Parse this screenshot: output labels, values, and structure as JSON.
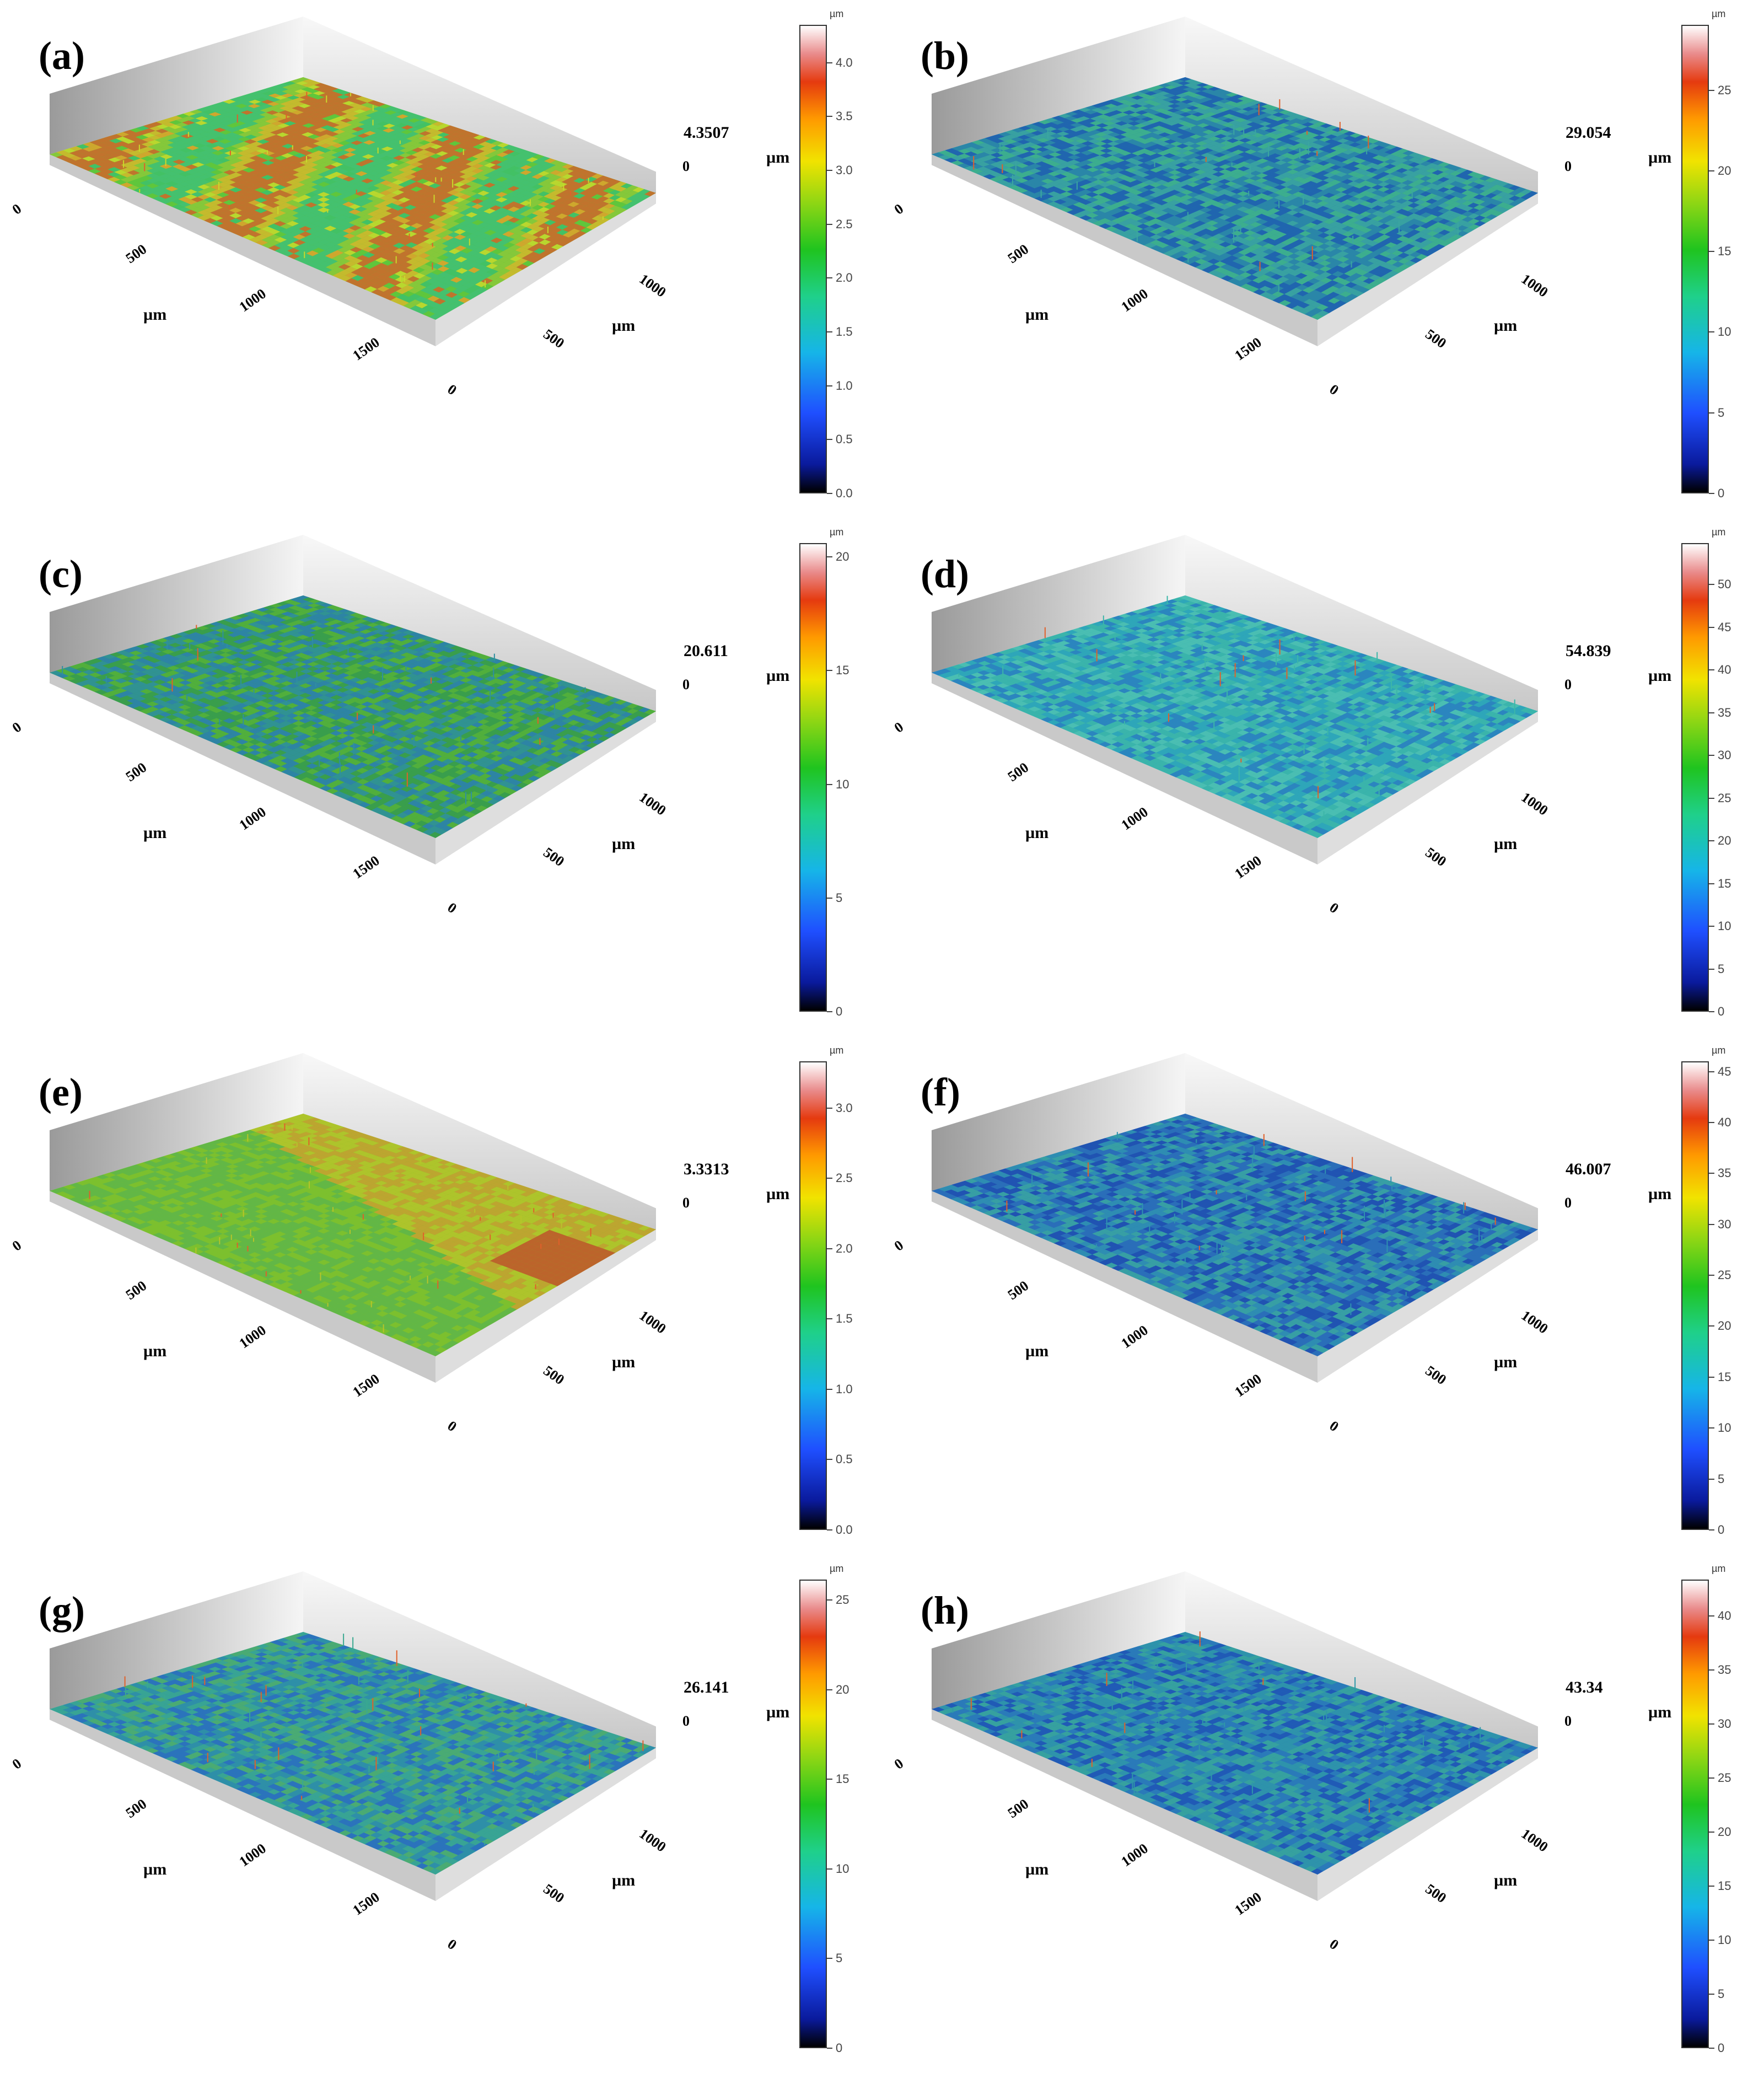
{
  "figure": {
    "panels": [
      {
        "label": "(a)",
        "max_value": "4.3507",
        "zero_label": "0",
        "unit": "µm",
        "x_ticks": [
          "0",
          "500",
          "1000",
          "1500"
        ],
        "x_unit": "µm",
        "y_ticks": [
          "0",
          "500",
          "1000"
        ],
        "y_unit": "µm",
        "colorbar": {
          "unit": "µm",
          "ticks": [
            "0.0",
            "0.5",
            "1.0",
            "1.5",
            "2.0",
            "2.5",
            "3.0",
            "3.5",
            "4.0"
          ],
          "max": 4.3507
        },
        "surface_colors": [
          "#5fc53c",
          "#c9d92b",
          "#e3a12a",
          "#d0652a",
          "#3dbf6c"
        ]
      },
      {
        "label": "(b)",
        "max_value": "29.054",
        "zero_label": "0",
        "unit": "µm",
        "x_ticks": [
          "0",
          "500",
          "1000",
          "1500"
        ],
        "x_unit": "µm",
        "y_ticks": [
          "0",
          "500",
          "1000"
        ],
        "y_unit": "µm",
        "colorbar": {
          "unit": "µm",
          "ticks": [
            "0",
            "5",
            "10",
            "15",
            "20",
            "25"
          ],
          "max": 29.054
        },
        "surface_colors": [
          "#2a86a8",
          "#3ba6a0",
          "#1f5fb0",
          "#40b58a"
        ]
      },
      {
        "label": "(c)",
        "max_value": "20.611",
        "zero_label": "0",
        "unit": "µm",
        "x_ticks": [
          "0",
          "500",
          "1000",
          "1500"
        ],
        "x_unit": "µm",
        "y_ticks": [
          "0",
          "500",
          "1000"
        ],
        "y_unit": "µm",
        "colorbar": {
          "unit": "µm",
          "ticks": [
            "0",
            "5",
            "10",
            "15",
            "20"
          ],
          "max": 20.611
        },
        "surface_colors": [
          "#3a9e4c",
          "#2f8fa0",
          "#56b13a",
          "#2b7fb5"
        ]
      },
      {
        "label": "(d)",
        "max_value": "54.839",
        "zero_label": "0",
        "unit": "µm",
        "x_ticks": [
          "0",
          "500",
          "1000",
          "1500"
        ],
        "x_unit": "µm",
        "y_ticks": [
          "0",
          "500",
          "1000"
        ],
        "y_unit": "µm",
        "colorbar": {
          "unit": "µm",
          "ticks": [
            "0",
            "5",
            "10",
            "15",
            "20",
            "25",
            "30",
            "35",
            "40",
            "45",
            "50"
          ],
          "max": 54.839
        },
        "surface_colors": [
          "#2ea6b8",
          "#3cb6a8",
          "#2a7fc0",
          "#4fc2b0"
        ]
      },
      {
        "label": "(e)",
        "max_value": "3.3313",
        "zero_label": "0",
        "unit": "µm",
        "x_ticks": [
          "0",
          "500",
          "1000",
          "1500"
        ],
        "x_unit": "µm",
        "y_ticks": [
          "0",
          "500",
          "1000"
        ],
        "y_unit": "µm",
        "colorbar": {
          "unit": "µm",
          "ticks": [
            "0.0",
            "0.5",
            "1.0",
            "1.5",
            "2.0",
            "2.5",
            "3.0"
          ],
          "max": 3.3313
        },
        "surface_colors": [
          "#7cc02e",
          "#b7c42a",
          "#5eb54a",
          "#c9a030"
        ]
      },
      {
        "label": "(f)",
        "max_value": "46.007",
        "zero_label": "0",
        "unit": "µm",
        "x_ticks": [
          "0",
          "500",
          "1000",
          "1500"
        ],
        "x_unit": "µm",
        "y_ticks": [
          "0",
          "500",
          "1000"
        ],
        "y_unit": "µm",
        "colorbar": {
          "unit": "µm",
          "ticks": [
            "0",
            "5",
            "10",
            "15",
            "20",
            "25",
            "30",
            "35",
            "40",
            "45"
          ],
          "max": 46.007
        },
        "surface_colors": [
          "#2a6fb8",
          "#2f93b0",
          "#1f4fb0",
          "#3aa8a0"
        ]
      },
      {
        "label": "(g)",
        "max_value": "26.141",
        "zero_label": "0",
        "unit": "µm",
        "x_ticks": [
          "0",
          "500",
          "1000",
          "1500"
        ],
        "x_unit": "µm",
        "y_ticks": [
          "0",
          "500",
          "1000"
        ],
        "y_unit": "µm",
        "colorbar": {
          "unit": "µm",
          "ticks": [
            "0",
            "5",
            "10",
            "15",
            "20",
            "25"
          ],
          "max": 26.141
        },
        "surface_colors": [
          "#2e8fa8",
          "#3aa890",
          "#2a6fc0",
          "#4fb06a"
        ]
      },
      {
        "label": "(h)",
        "max_value": "43.34",
        "zero_label": "0",
        "unit": "µm",
        "x_ticks": [
          "0",
          "500",
          "1000",
          "1500"
        ],
        "x_unit": "µm",
        "y_ticks": [
          "0",
          "500",
          "1000"
        ],
        "y_unit": "µm",
        "colorbar": {
          "unit": "µm",
          "ticks": [
            "0",
            "5",
            "10",
            "15",
            "20",
            "25",
            "30",
            "35",
            "40"
          ],
          "max": 43.34
        },
        "surface_colors": [
          "#2a7ab8",
          "#2f98a8",
          "#1f55b5",
          "#38a89a"
        ]
      }
    ]
  }
}
